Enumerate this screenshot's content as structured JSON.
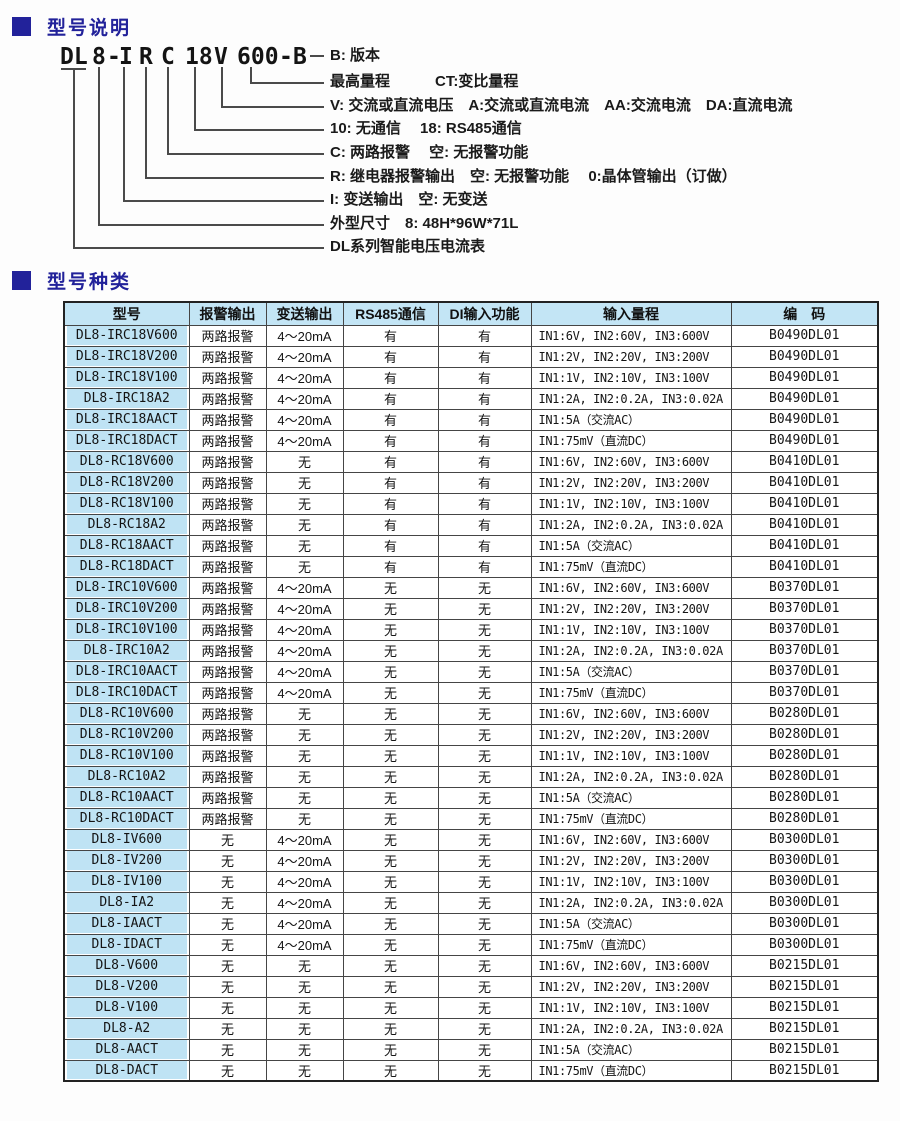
{
  "page": {
    "accent_navy": "#22229a",
    "table_header_blue": "#c3e5f5",
    "model_col_blue": "#bfe3f4"
  },
  "sections": [
    {
      "title": "型号说明"
    },
    {
      "title": "型号种类"
    }
  ],
  "diagram": {
    "model": [
      "DL",
      "8",
      "-",
      "I",
      "R",
      "C",
      "18",
      "V",
      "600",
      "-",
      "B"
    ],
    "labels": [
      "B: 版本",
      "最高量程　　　CT:变比量程",
      "V: 交流或直流电压　A:交流或直流电流　AA:交流电流　DA:直流电流",
      "10: 无通信　 18: RS485通信",
      "C: 两路报警　 空: 无报警功能",
      "R: 继电器报警输出　空: 无报警功能　 0:晶体管输出（订做）",
      "I: 变送输出　空: 无变送",
      "外型尺寸　8: 48H*96W*71L",
      "DL系列智能电压电流表"
    ]
  },
  "table": {
    "headers": [
      "型号",
      "报警输出",
      "变送输出",
      "RS485通信",
      "DI输入功能",
      "输入量程",
      "编　码"
    ],
    "rows": [
      [
        "DL8-IRC18V600",
        "两路报警",
        "4～20mA",
        "有",
        "有",
        "IN1:6V, IN2:60V, IN3:600V",
        "B0490DL01"
      ],
      [
        "DL8-IRC18V200",
        "两路报警",
        "4～20mA",
        "有",
        "有",
        "IN1:2V, IN2:20V, IN3:200V",
        "B0490DL01"
      ],
      [
        "DL8-IRC18V100",
        "两路报警",
        "4～20mA",
        "有",
        "有",
        "IN1:1V, IN2:10V, IN3:100V",
        "B0490DL01"
      ],
      [
        "DL8-IRC18A2",
        "两路报警",
        "4～20mA",
        "有",
        "有",
        "IN1:2A, IN2:0.2A, IN3:0.02A",
        "B0490DL01"
      ],
      [
        "DL8-IRC18AACT",
        "两路报警",
        "4～20mA",
        "有",
        "有",
        "IN1:5A（交流AC）",
        "B0490DL01"
      ],
      [
        "DL8-IRC18DACT",
        "两路报警",
        "4～20mA",
        "有",
        "有",
        "IN1:75mV（直流DC）",
        "B0490DL01"
      ],
      [
        "DL8-RC18V600",
        "两路报警",
        "无",
        "有",
        "有",
        "IN1:6V, IN2:60V, IN3:600V",
        "B0410DL01"
      ],
      [
        "DL8-RC18V200",
        "两路报警",
        "无",
        "有",
        "有",
        "IN1:2V, IN2:20V, IN3:200V",
        "B0410DL01"
      ],
      [
        "DL8-RC18V100",
        "两路报警",
        "无",
        "有",
        "有",
        "IN1:1V, IN2:10V, IN3:100V",
        "B0410DL01"
      ],
      [
        "DL8-RC18A2",
        "两路报警",
        "无",
        "有",
        "有",
        "IN1:2A, IN2:0.2A, IN3:0.02A",
        "B0410DL01"
      ],
      [
        "DL8-RC18AACT",
        "两路报警",
        "无",
        "有",
        "有",
        "IN1:5A（交流AC）",
        "B0410DL01"
      ],
      [
        "DL8-RC18DACT",
        "两路报警",
        "无",
        "有",
        "有",
        "IN1:75mV（直流DC）",
        "B0410DL01"
      ],
      [
        "DL8-IRC10V600",
        "两路报警",
        "4～20mA",
        "无",
        "无",
        "IN1:6V, IN2:60V, IN3:600V",
        "B0370DL01"
      ],
      [
        "DL8-IRC10V200",
        "两路报警",
        "4～20mA",
        "无",
        "无",
        "IN1:2V, IN2:20V, IN3:200V",
        "B0370DL01"
      ],
      [
        "DL8-IRC10V100",
        "两路报警",
        "4～20mA",
        "无",
        "无",
        "IN1:1V, IN2:10V, IN3:100V",
        "B0370DL01"
      ],
      [
        "DL8-IRC10A2",
        "两路报警",
        "4～20mA",
        "无",
        "无",
        "IN1:2A, IN2:0.2A, IN3:0.02A",
        "B0370DL01"
      ],
      [
        "DL8-IRC10AACT",
        "两路报警",
        "4～20mA",
        "无",
        "无",
        "IN1:5A（交流AC）",
        "B0370DL01"
      ],
      [
        "DL8-IRC10DACT",
        "两路报警",
        "4～20mA",
        "无",
        "无",
        "IN1:75mV（直流DC）",
        "B0370DL01"
      ],
      [
        "DL8-RC10V600",
        "两路报警",
        "无",
        "无",
        "无",
        "IN1:6V, IN2:60V, IN3:600V",
        "B0280DL01"
      ],
      [
        "DL8-RC10V200",
        "两路报警",
        "无",
        "无",
        "无",
        "IN1:2V, IN2:20V, IN3:200V",
        "B0280DL01"
      ],
      [
        "DL8-RC10V100",
        "两路报警",
        "无",
        "无",
        "无",
        "IN1:1V, IN2:10V, IN3:100V",
        "B0280DL01"
      ],
      [
        "DL8-RC10A2",
        "两路报警",
        "无",
        "无",
        "无",
        "IN1:2A, IN2:0.2A, IN3:0.02A",
        "B0280DL01"
      ],
      [
        "DL8-RC10AACT",
        "两路报警",
        "无",
        "无",
        "无",
        "IN1:5A（交流AC）",
        "B0280DL01"
      ],
      [
        "DL8-RC10DACT",
        "两路报警",
        "无",
        "无",
        "无",
        "IN1:75mV（直流DC）",
        "B0280DL01"
      ],
      [
        "DL8-IV600",
        "无",
        "4～20mA",
        "无",
        "无",
        "IN1:6V, IN2:60V, IN3:600V",
        "B0300DL01"
      ],
      [
        "DL8-IV200",
        "无",
        "4～20mA",
        "无",
        "无",
        "IN1:2V, IN2:20V, IN3:200V",
        "B0300DL01"
      ],
      [
        "DL8-IV100",
        "无",
        "4～20mA",
        "无",
        "无",
        "IN1:1V, IN2:10V, IN3:100V",
        "B0300DL01"
      ],
      [
        "DL8-IA2",
        "无",
        "4～20mA",
        "无",
        "无",
        "IN1:2A, IN2:0.2A, IN3:0.02A",
        "B0300DL01"
      ],
      [
        "DL8-IAACT",
        "无",
        "4～20mA",
        "无",
        "无",
        "IN1:5A（交流AC）",
        "B0300DL01"
      ],
      [
        "DL8-IDACT",
        "无",
        "4～20mA",
        "无",
        "无",
        "IN1:75mV（直流DC）",
        "B0300DL01"
      ],
      [
        "DL8-V600",
        "无",
        "无",
        "无",
        "无",
        "IN1:6V, IN2:60V, IN3:600V",
        "B0215DL01"
      ],
      [
        "DL8-V200",
        "无",
        "无",
        "无",
        "无",
        "IN1:2V, IN2:20V, IN3:200V",
        "B0215DL01"
      ],
      [
        "DL8-V100",
        "无",
        "无",
        "无",
        "无",
        "IN1:1V, IN2:10V, IN3:100V",
        "B0215DL01"
      ],
      [
        "DL8-A2",
        "无",
        "无",
        "无",
        "无",
        "IN1:2A, IN2:0.2A, IN3:0.02A",
        "B0215DL01"
      ],
      [
        "DL8-AACT",
        "无",
        "无",
        "无",
        "无",
        "IN1:5A（交流AC）",
        "B0215DL01"
      ],
      [
        "DL8-DACT",
        "无",
        "无",
        "无",
        "无",
        "IN1:75mV（直流DC）",
        "B0215DL01"
      ]
    ]
  }
}
